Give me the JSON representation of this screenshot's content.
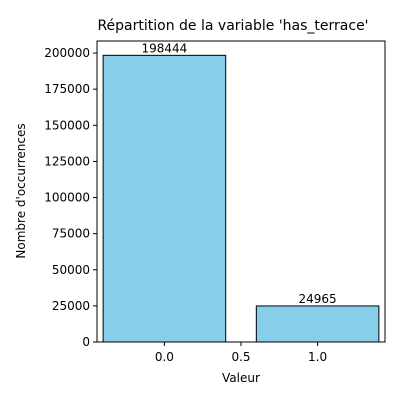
{
  "chart_data": {
    "type": "bar",
    "title": "Répartition de la variable 'has_terrace'",
    "xlabel": "Valeur",
    "ylabel": "Nombre d'occurrences",
    "bars": [
      {
        "x": 0.0,
        "value": 198444,
        "label": "198444"
      },
      {
        "x": 1.0,
        "value": 24965,
        "label": "24965"
      }
    ],
    "bar_width": 0.8,
    "xlim": [
      -0.44,
      1.44
    ],
    "ylim": [
      0,
      208366
    ],
    "x_ticks": [
      {
        "value": 0.0,
        "label": "0.0"
      },
      {
        "value": 0.5,
        "label": "0.5"
      },
      {
        "value": 1.0,
        "label": "1.0"
      }
    ],
    "y_ticks": [
      {
        "value": 0,
        "label": "0"
      },
      {
        "value": 25000,
        "label": "25000"
      },
      {
        "value": 50000,
        "label": "50000"
      },
      {
        "value": 75000,
        "label": "75000"
      },
      {
        "value": 100000,
        "label": "100000"
      },
      {
        "value": 125000,
        "label": "125000"
      },
      {
        "value": 150000,
        "label": "150000"
      },
      {
        "value": 175000,
        "label": "175000"
      },
      {
        "value": 200000,
        "label": "200000"
      }
    ],
    "bar_color": "#87ceeb",
    "bar_edge_color": "#000000",
    "grid": false,
    "legend": "none"
  }
}
